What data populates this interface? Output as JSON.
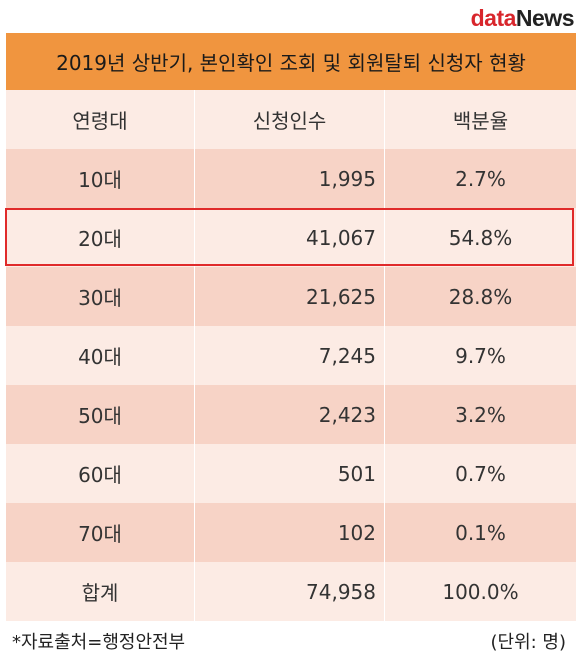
{
  "logo": {
    "part1": "data",
    "part2": "News"
  },
  "title": "2019년 상반기, 본인확인 조회 및 회원탈퇴 신청자 현황",
  "chart_data": {
    "type": "table",
    "columns": [
      "연령대",
      "신청인수",
      "백분율"
    ],
    "rows": [
      [
        "10대",
        "1,995",
        "2.7%"
      ],
      [
        "20대",
        "41,067",
        "54.8%"
      ],
      [
        "30대",
        "21,625",
        "28.8%"
      ],
      [
        "40대",
        "7,245",
        "9.7%"
      ],
      [
        "50대",
        "2,423",
        "3.2%"
      ],
      [
        "60대",
        "501",
        "0.7%"
      ],
      [
        "70대",
        "102",
        "0.1%"
      ],
      [
        "합계",
        "74,958",
        "100.0%"
      ]
    ],
    "highlighted_row": "20대"
  },
  "footer": {
    "source": "*자료출처=행정안전부",
    "unit": "(단위: 명)"
  },
  "colors": {
    "title_bg": "#f0953f",
    "row_light": "#fcebe4",
    "row_dark": "#f7d3c6",
    "highlight": "#e02a2a",
    "logo_red": "#d8262c"
  }
}
